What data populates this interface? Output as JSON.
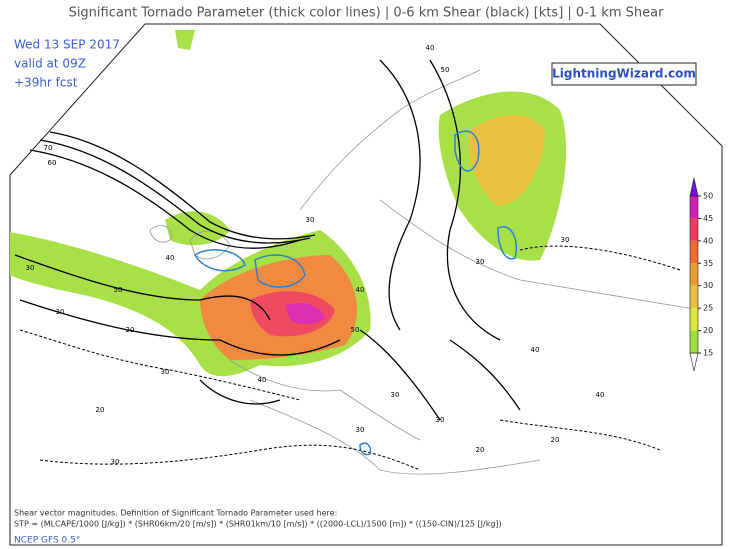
{
  "title": "Significant Tornado Parameter (thick color lines) | 0-6 km Shear (black) [kts] | 0-1 km Shear",
  "info": {
    "date": "Wed 13 SEP 2017",
    "valid": "valid at 09Z",
    "forecast": "+39hr fcst"
  },
  "logo": "LightningWizard.com",
  "footer": {
    "line1": "Shear vector magnitudes. Definition of Significant Tornado Parameter used here:",
    "line2": "STP = (MLCAPE/1000 [J/kg]) * (SHR06km/20 [m/s]) * (SHR01km/10 [m/s]) * ((2000-LCL)/1500 [m]) * ((150-CIN)/125 [J/kg])",
    "model": "NCEP GFS 0.5°"
  },
  "colorbar": {
    "ticks": [
      15,
      20,
      25,
      30,
      35,
      40,
      45,
      50
    ],
    "colors": [
      "#9ee03c",
      "#d8e83c",
      "#e8c040",
      "#e89a38",
      "#f06a30",
      "#f03a60",
      "#d020b0"
    ],
    "top_color": "#7010e0"
  },
  "contour_labels": [
    70,
    60,
    50,
    40,
    30,
    20,
    50,
    40,
    30,
    30,
    40,
    50,
    30,
    20,
    30,
    40,
    30,
    30,
    20,
    30,
    40,
    30,
    20,
    30,
    40
  ]
}
